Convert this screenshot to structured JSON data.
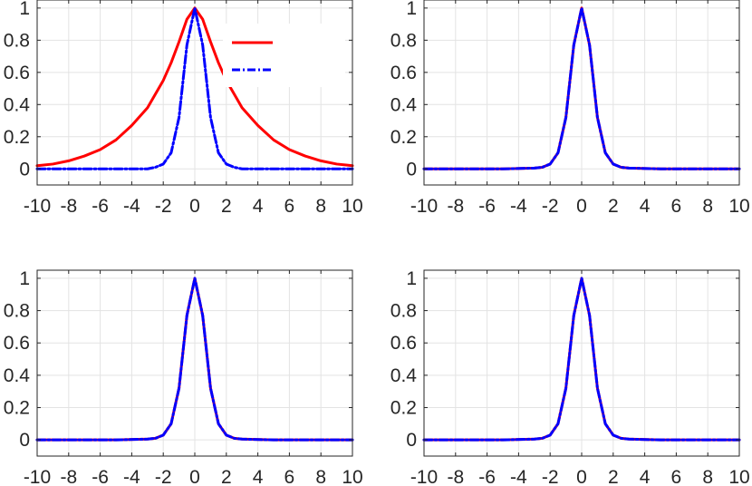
{
  "chart_data": [
    {
      "type": "line",
      "title": "",
      "xlabel": "",
      "ylabel": "",
      "xlim": [
        -10,
        10
      ],
      "ylim": [
        -0.1,
        1.05
      ],
      "xticks": [
        -10,
        -8,
        -6,
        -4,
        -2,
        0,
        2,
        4,
        6,
        8,
        10
      ],
      "yticks": [
        0,
        0.2,
        0.4,
        0.6,
        0.8,
        1
      ],
      "xtick_labels": [
        "-10",
        "-8",
        "-6",
        "-4",
        "-2",
        "0",
        "2",
        "4",
        "6",
        "8",
        "10"
      ],
      "ytick_labels": [
        "0",
        "0.2",
        "0.4",
        "0.6",
        "0.8",
        "1"
      ],
      "grid": true,
      "legend": {
        "position": "top-right",
        "entries": [
          "",
          ""
        ]
      },
      "series": [
        {
          "color": "#ff0000",
          "style": "solid",
          "x": [
            -10,
            -9,
            -8,
            -7,
            -6,
            -5,
            -4,
            -3,
            -2,
            -1.5,
            -1,
            -0.5,
            0,
            0.5,
            1,
            1.5,
            2,
            3,
            4,
            5,
            6,
            7,
            8,
            9,
            10
          ],
          "y": [
            0.02,
            0.03,
            0.05,
            0.08,
            0.12,
            0.18,
            0.27,
            0.38,
            0.55,
            0.66,
            0.79,
            0.93,
            1,
            0.93,
            0.79,
            0.66,
            0.55,
            0.38,
            0.27,
            0.18,
            0.12,
            0.08,
            0.05,
            0.03,
            0.02
          ]
        },
        {
          "color": "#0000ff",
          "style": "dashdot",
          "x": [
            -10,
            -5,
            -3,
            -2.5,
            -2,
            -1.5,
            -1,
            -0.5,
            0,
            0.5,
            1,
            1.5,
            2,
            2.5,
            3,
            5,
            10
          ],
          "y": [
            0,
            0,
            0,
            0.01,
            0.03,
            0.1,
            0.32,
            0.77,
            1,
            0.77,
            0.32,
            0.1,
            0.03,
            0.01,
            0,
            0,
            0
          ]
        }
      ]
    },
    {
      "type": "line",
      "xlim": [
        -10,
        10
      ],
      "ylim": [
        -0.1,
        1.05
      ],
      "xticks": [
        -10,
        -8,
        -6,
        -4,
        -2,
        0,
        2,
        4,
        6,
        8,
        10
      ],
      "yticks": [
        0,
        0.2,
        0.4,
        0.6,
        0.8,
        1
      ],
      "xtick_labels": [
        "-10",
        "-8",
        "-6",
        "-4",
        "-2",
        "0",
        "2",
        "4",
        "6",
        "8",
        "10"
      ],
      "ytick_labels": [
        "0",
        "0.2",
        "0.4",
        "0.6",
        "0.8",
        "1"
      ],
      "grid": true,
      "series": [
        {
          "color": "#ff0000",
          "style": "solid",
          "x": [
            -10,
            -5,
            -3,
            -2.5,
            -2,
            -1.5,
            -1,
            -0.5,
            0,
            0.5,
            1,
            1.5,
            2,
            2.5,
            3,
            5,
            10
          ],
          "y": [
            0,
            0,
            0.005,
            0.01,
            0.03,
            0.1,
            0.32,
            0.77,
            1,
            0.77,
            0.32,
            0.1,
            0.03,
            0.01,
            0.005,
            0,
            0
          ]
        },
        {
          "color": "#0000ff",
          "style": "dashdot",
          "x": [
            -10,
            -5,
            -3,
            -2.5,
            -2,
            -1.5,
            -1,
            -0.5,
            0,
            0.5,
            1,
            1.5,
            2,
            2.5,
            3,
            5,
            10
          ],
          "y": [
            0,
            0,
            0.005,
            0.01,
            0.03,
            0.1,
            0.32,
            0.77,
            1,
            0.77,
            0.32,
            0.1,
            0.03,
            0.01,
            0.005,
            0,
            0
          ]
        }
      ]
    },
    {
      "type": "line",
      "xlim": [
        -10,
        10
      ],
      "ylim": [
        -0.1,
        1.05
      ],
      "xticks": [
        -10,
        -8,
        -6,
        -4,
        -2,
        0,
        2,
        4,
        6,
        8,
        10
      ],
      "yticks": [
        0,
        0.2,
        0.4,
        0.6,
        0.8,
        1
      ],
      "xtick_labels": [
        "-10",
        "-8",
        "-6",
        "-4",
        "-2",
        "0",
        "2",
        "4",
        "6",
        "8",
        "10"
      ],
      "ytick_labels": [
        "0",
        "0.2",
        "0.4",
        "0.6",
        "0.8",
        "1"
      ],
      "grid": true,
      "series": [
        {
          "color": "#ff0000",
          "style": "solid",
          "x": [
            -10,
            -5,
            -3,
            -2.5,
            -2,
            -1.5,
            -1,
            -0.5,
            0,
            0.5,
            1,
            1.5,
            2,
            2.5,
            3,
            5,
            10
          ],
          "y": [
            0,
            0,
            0.005,
            0.01,
            0.03,
            0.1,
            0.32,
            0.77,
            1,
            0.77,
            0.32,
            0.1,
            0.03,
            0.01,
            0.005,
            0,
            0
          ]
        },
        {
          "color": "#0000ff",
          "style": "dashdot",
          "x": [
            -10,
            -5,
            -3,
            -2.5,
            -2,
            -1.5,
            -1,
            -0.5,
            0,
            0.5,
            1,
            1.5,
            2,
            2.5,
            3,
            5,
            10
          ],
          "y": [
            0,
            0,
            0.005,
            0.01,
            0.03,
            0.1,
            0.32,
            0.77,
            1,
            0.77,
            0.32,
            0.1,
            0.03,
            0.01,
            0.005,
            0,
            0
          ]
        }
      ]
    },
    {
      "type": "line",
      "xlim": [
        -10,
        10
      ],
      "ylim": [
        -0.1,
        1.05
      ],
      "xticks": [
        -10,
        -8,
        -6,
        -4,
        -2,
        0,
        2,
        4,
        6,
        8,
        10
      ],
      "yticks": [
        0,
        0.2,
        0.4,
        0.6,
        0.8,
        1
      ],
      "xtick_labels": [
        "-10",
        "-8",
        "-6",
        "-4",
        "-2",
        "0",
        "2",
        "4",
        "6",
        "8",
        "10"
      ],
      "ytick_labels": [
        "0",
        "0.2",
        "0.4",
        "0.6",
        "0.8",
        "1"
      ],
      "grid": true,
      "series": [
        {
          "color": "#ff0000",
          "style": "solid",
          "x": [
            -10,
            -5,
            -3,
            -2.5,
            -2,
            -1.5,
            -1,
            -0.5,
            0,
            0.5,
            1,
            1.5,
            2,
            2.5,
            3,
            5,
            10
          ],
          "y": [
            0,
            0,
            0.005,
            0.01,
            0.03,
            0.1,
            0.32,
            0.77,
            1,
            0.77,
            0.32,
            0.1,
            0.03,
            0.01,
            0.005,
            0,
            0
          ]
        },
        {
          "color": "#0000ff",
          "style": "dashdot",
          "x": [
            -10,
            -5,
            -3,
            -2.5,
            -2,
            -1.5,
            -1,
            -0.5,
            0,
            0.5,
            1,
            1.5,
            2,
            2.5,
            3,
            5,
            10
          ],
          "y": [
            0,
            0,
            0.005,
            0.01,
            0.03,
            0.1,
            0.32,
            0.77,
            1,
            0.77,
            0.32,
            0.1,
            0.03,
            0.01,
            0.005,
            0,
            0
          ]
        }
      ]
    }
  ]
}
